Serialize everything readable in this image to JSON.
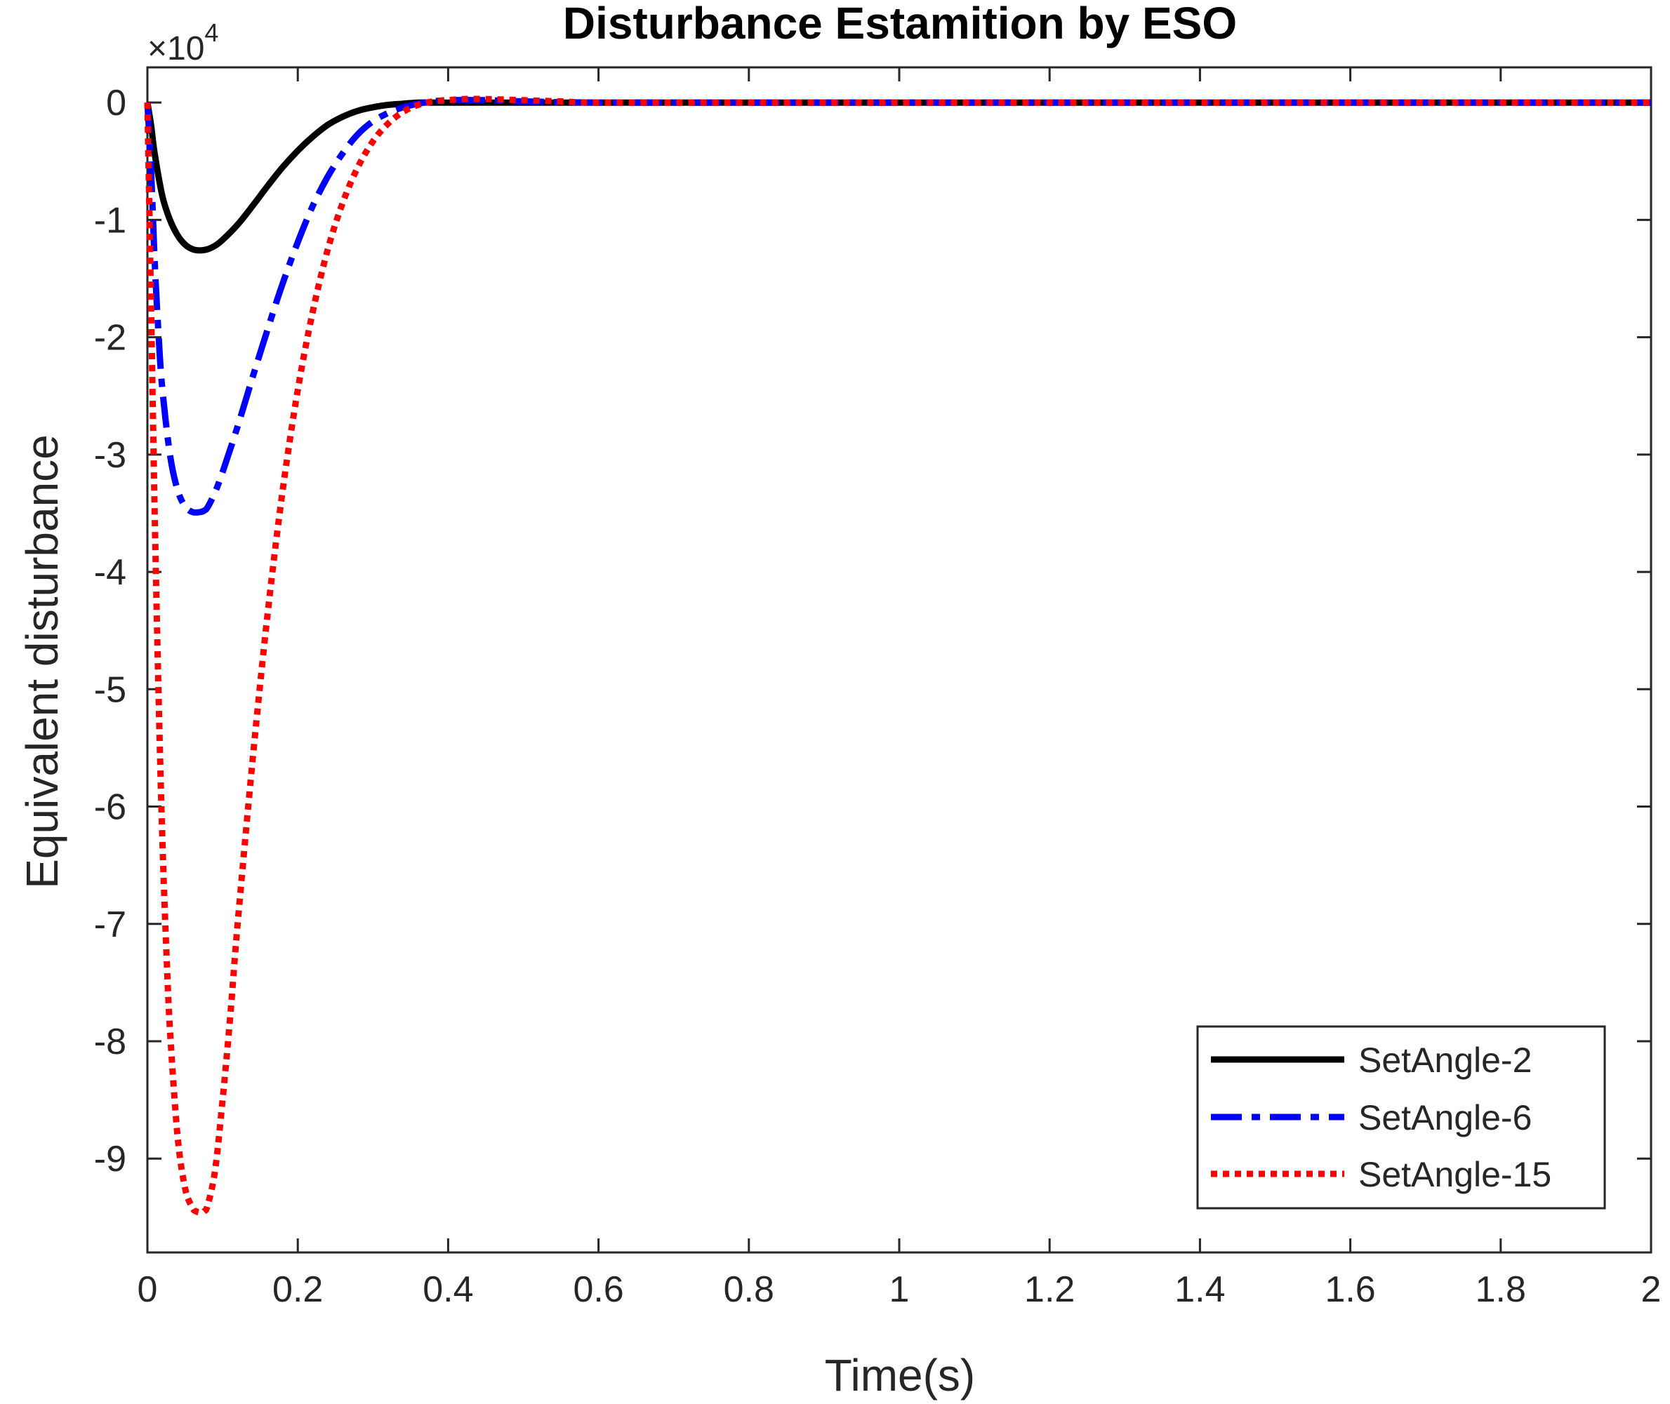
{
  "chart_data": {
    "type": "line",
    "title": "Disturbance Estamition by ESO",
    "xlabel": "Time(s)",
    "ylabel": "Equivalent disturbance",
    "exponent_label": "×10",
    "exponent_power": "4",
    "xlim": [
      0,
      2
    ],
    "ylim": [
      -9.8,
      0.3
    ],
    "xticks": [
      0,
      0.2,
      0.4,
      0.6,
      0.8,
      1,
      1.2,
      1.4,
      1.6,
      1.8,
      2
    ],
    "xtick_labels": [
      "0",
      "0.2",
      "0.4",
      "0.6",
      "0.8",
      "1",
      "1.2",
      "1.4",
      "1.6",
      "1.8",
      "2"
    ],
    "yticks": [
      0,
      -1,
      -2,
      -3,
      -4,
      -5,
      -6,
      -7,
      -8,
      -9
    ],
    "ytick_labels": [
      "0",
      "-1",
      "-2",
      "-3",
      "-4",
      "-5",
      "-6",
      "-7",
      "-8",
      "-9"
    ],
    "grid": false,
    "legend_position": "bottom-right",
    "series": [
      {
        "name": "SetAngle-2",
        "color": "#000000",
        "style": "solid",
        "x": [
          0,
          0.005,
          0.01,
          0.02,
          0.03,
          0.04,
          0.05,
          0.06,
          0.07,
          0.08,
          0.09,
          0.1,
          0.12,
          0.14,
          0.16,
          0.18,
          0.2,
          0.22,
          0.24,
          0.26,
          0.28,
          0.3,
          0.32,
          0.34,
          0.36,
          0.38,
          0.4,
          0.45,
          0.5,
          0.6,
          0.8,
          1,
          1.5,
          2
        ],
        "y": [
          0,
          -0.2,
          -0.45,
          -0.8,
          -1.0,
          -1.13,
          -1.21,
          -1.25,
          -1.26,
          -1.25,
          -1.22,
          -1.17,
          -1.04,
          -0.88,
          -0.71,
          -0.55,
          -0.41,
          -0.29,
          -0.19,
          -0.12,
          -0.07,
          -0.04,
          -0.02,
          -0.01,
          0.0,
          0.0,
          0.0,
          0.0,
          0.0,
          0.0,
          0.0,
          0.0,
          0.0,
          0.0
        ]
      },
      {
        "name": "SetAngle-6",
        "color": "#0000ff",
        "style": "dashdot",
        "x": [
          0,
          0.005,
          0.01,
          0.015,
          0.02,
          0.03,
          0.04,
          0.05,
          0.06,
          0.07,
          0.075,
          0.08,
          0.09,
          0.1,
          0.12,
          0.14,
          0.16,
          0.18,
          0.2,
          0.22,
          0.24,
          0.26,
          0.28,
          0.3,
          0.32,
          0.34,
          0.36,
          0.38,
          0.4,
          0.45,
          0.5,
          0.6,
          0.8,
          1,
          1.5,
          2
        ],
        "y": [
          0,
          -0.6,
          -1.4,
          -2.0,
          -2.45,
          -3.0,
          -3.3,
          -3.44,
          -3.49,
          -3.49,
          -3.48,
          -3.45,
          -3.32,
          -3.15,
          -2.76,
          -2.34,
          -1.93,
          -1.54,
          -1.19,
          -0.88,
          -0.63,
          -0.43,
          -0.27,
          -0.16,
          -0.09,
          -0.04,
          -0.01,
          0.01,
          0.02,
          0.02,
          0.01,
          0.0,
          0.0,
          0.0,
          0.0,
          0.0
        ]
      },
      {
        "name": "SetAngle-15",
        "color": "#ff0000",
        "style": "dotted",
        "x": [
          0,
          0.005,
          0.01,
          0.015,
          0.02,
          0.025,
          0.03,
          0.04,
          0.05,
          0.06,
          0.065,
          0.07,
          0.075,
          0.08,
          0.09,
          0.1,
          0.11,
          0.12,
          0.14,
          0.16,
          0.18,
          0.2,
          0.22,
          0.24,
          0.26,
          0.28,
          0.3,
          0.32,
          0.34,
          0.36,
          0.38,
          0.4,
          0.42,
          0.45,
          0.5,
          0.55,
          0.6,
          0.8,
          1,
          1.5,
          2
        ],
        "y": [
          0,
          -1.8,
          -3.6,
          -5.1,
          -6.3,
          -7.2,
          -7.9,
          -8.8,
          -9.25,
          -9.42,
          -9.45,
          -9.46,
          -9.45,
          -9.4,
          -9.1,
          -8.5,
          -7.8,
          -7.0,
          -5.6,
          -4.35,
          -3.3,
          -2.45,
          -1.78,
          -1.25,
          -0.85,
          -0.55,
          -0.33,
          -0.18,
          -0.08,
          -0.02,
          0.01,
          0.02,
          0.03,
          0.03,
          0.02,
          0.01,
          0.0,
          0.0,
          0.0,
          0.0,
          0.0
        ]
      }
    ]
  }
}
